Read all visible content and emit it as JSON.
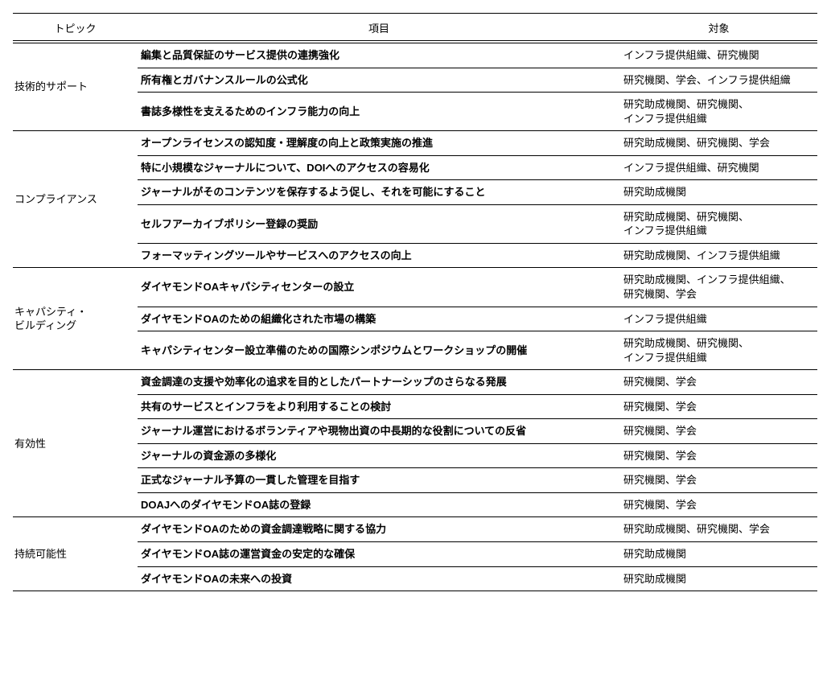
{
  "columns": {
    "topic": "トピック",
    "item": "項目",
    "target": "対象"
  },
  "groups": [
    {
      "topic": "技術的サポート",
      "rows": [
        {
          "item": "編集と品質保証のサービス提供の連携強化",
          "target": "インフラ提供組織、研究機関"
        },
        {
          "item": "所有権とガバナンスルールの公式化",
          "target": "研究機関、学会、インフラ提供組織"
        },
        {
          "item": "書誌多様性を支えるためのインフラ能力の向上",
          "target": "研究助成機関、研究機関、\nインフラ提供組織"
        }
      ]
    },
    {
      "topic": "コンプライアンス",
      "rows": [
        {
          "item": "オープンライセンスの認知度・理解度の向上と政策実施の推進",
          "target": "研究助成機関、研究機関、学会"
        },
        {
          "item": "特に小規模なジャーナルについて、DOIへのアクセスの容易化",
          "target": "インフラ提供組織、研究機関"
        },
        {
          "item": "ジャーナルがそのコンテンツを保存するよう促し、それを可能にすること",
          "target": "研究助成機関"
        },
        {
          "item": "セルフアーカイブポリシー登録の奨励",
          "target": "研究助成機関、研究機関、\nインフラ提供組織"
        },
        {
          "item": "フォーマッティングツールやサービスへのアクセスの向上",
          "target": "研究助成機関、インフラ提供組織"
        }
      ]
    },
    {
      "topic": "キャパシティ・\nビルディング",
      "rows": [
        {
          "item": "ダイヤモンドOAキャパシティセンターの設立",
          "target": "研究助成機関、インフラ提供組織、\n研究機関、学会"
        },
        {
          "item": "ダイヤモンドOAのための組織化された市場の構築",
          "target": "インフラ提供組織"
        },
        {
          "item": "キャパシティセンター設立準備のための国際シンポジウムとワークショップの開催",
          "target": "研究助成機関、研究機関、\nインフラ提供組織"
        }
      ]
    },
    {
      "topic": "有効性",
      "rows": [
        {
          "item": "資金調達の支援や効率化の追求を目的としたパートナーシップのさらなる発展",
          "target": "研究機関、学会"
        },
        {
          "item": "共有のサービスとインフラをより利用することの検討",
          "target": "研究機関、学会"
        },
        {
          "item": "ジャーナル運営におけるボランティアや現物出資の中長期的な役割についての反省",
          "target": "研究機関、学会"
        },
        {
          "item": "ジャーナルの資金源の多様化",
          "target": "研究機関、学会"
        },
        {
          "item": "正式なジャーナル予算の一貫した管理を目指す",
          "target": "研究機関、学会"
        },
        {
          "item": "DOAJへのダイヤモンドOA誌の登録",
          "target": "研究機関、学会"
        }
      ]
    },
    {
      "topic": "持続可能性",
      "rows": [
        {
          "item": "ダイヤモンドOAのための資金調達戦略に関する協力",
          "target": "研究助成機関、研究機関、学会"
        },
        {
          "item": "ダイヤモンドOA誌の運営資金の安定的な確保",
          "target": "研究助成機関"
        },
        {
          "item": "ダイヤモンドOAの未来への投資",
          "target": "研究助成機関"
        }
      ]
    }
  ]
}
